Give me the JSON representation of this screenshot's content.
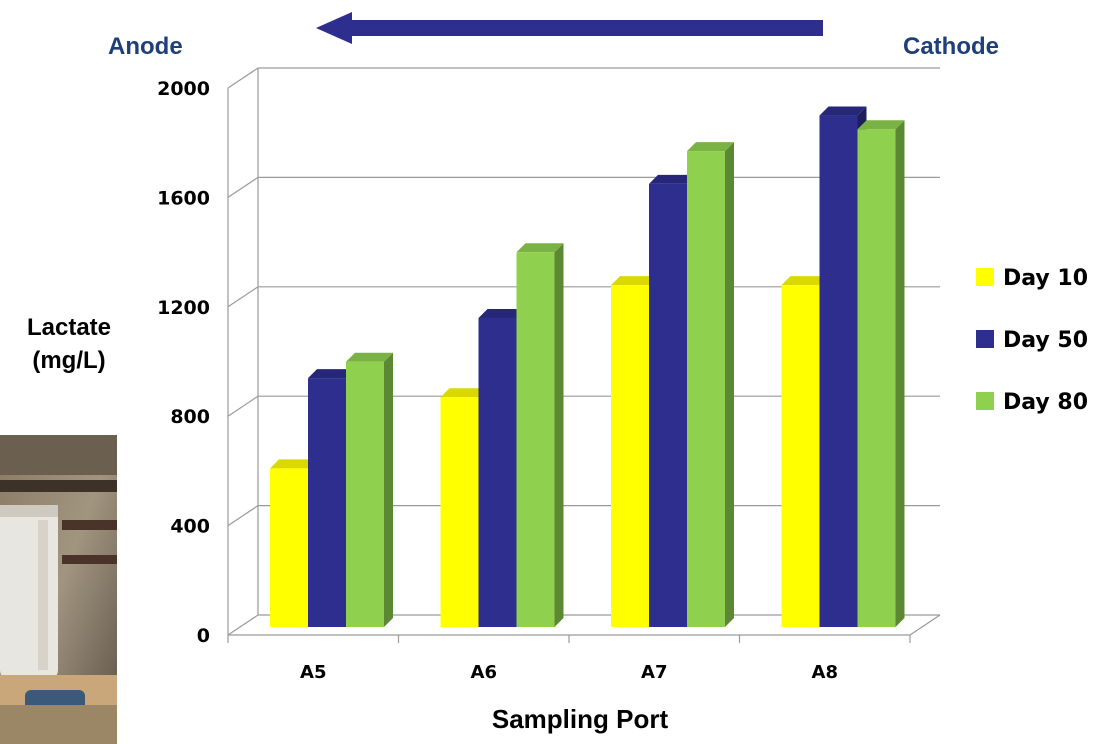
{
  "header": {
    "left_label": "Anode",
    "right_label": "Cathode",
    "arrow_color": "#2e2e8f",
    "label_color": "#1f3f7a"
  },
  "photo_inset": {
    "icon": "lab-equipment-photo"
  },
  "chart_data": {
    "type": "bar",
    "categories": [
      "A5",
      "A6",
      "A7",
      "A8"
    ],
    "series": [
      {
        "name": "Day 10",
        "color": "#ffff00",
        "values": [
          580,
          840,
          1250,
          1250
        ]
      },
      {
        "name": "Day 50",
        "color": "#2e2e8f",
        "values": [
          910,
          1130,
          1620,
          1870
        ]
      },
      {
        "name": "Day 80",
        "color": "#8fd14f",
        "values": [
          970,
          1370,
          1740,
          1820
        ]
      }
    ],
    "ylabel_line1": "Lactate",
    "ylabel_line2": "(mg/L)",
    "xlabel": "Sampling Port",
    "yticks": [
      "0",
      "400",
      "800",
      "1200",
      "1600",
      "2000"
    ],
    "ylim": [
      0,
      2000
    ],
    "grid": true,
    "legend_position": "right",
    "three_d": true
  }
}
